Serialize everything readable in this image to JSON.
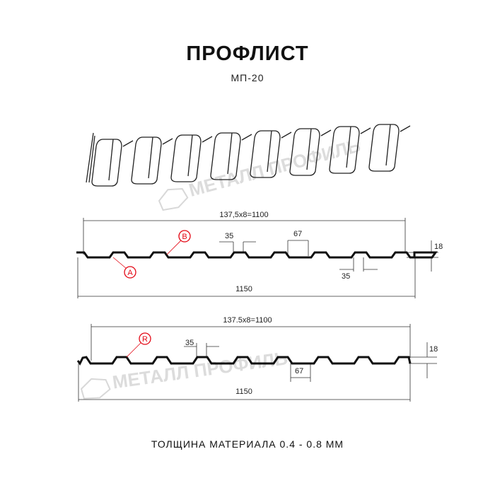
{
  "title": "ПРОФЛИСТ",
  "subtitle": "МП-20",
  "watermark": "МЕТАЛЛ ПРОФИЛЬ",
  "profile_1": {
    "pitch_label": "137,5x8=1100",
    "width_label": "1150",
    "top_width": "35",
    "bottom_width": "35",
    "rib_base": "67",
    "height": "18",
    "marker_a": "A",
    "marker_b": "B"
  },
  "profile_2": {
    "pitch_label": "137.5x8=1100",
    "width_label": "1150",
    "top_width": "35",
    "rib_base": "67",
    "height": "18",
    "marker_r": "R"
  },
  "footer": "ТОЛЩИНА МАТЕРИАЛА 0.4 - 0.8 ММ",
  "colors": {
    "line": "#111111",
    "marker": "#e30613",
    "watermark": "#d9d9d9"
  }
}
